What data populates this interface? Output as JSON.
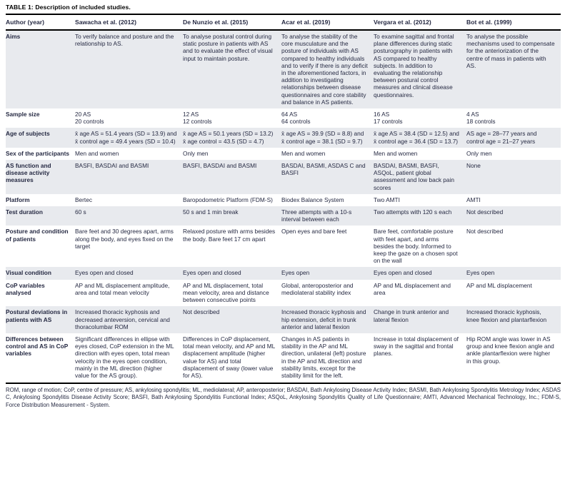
{
  "title": "TABLE 1: Description of included studies.",
  "colors": {
    "row_shade": "#e8eaee",
    "text": "#262a43",
    "rule": "#000000"
  },
  "table": {
    "columns": [
      "Author (year)",
      "Sawacha et al. (2012)",
      "De Nunzio et al. (2015)",
      "Acar et al. (2019)",
      "Vergara et al. (2012)",
      "Bot et al. (1999)"
    ],
    "rows": [
      {
        "label": "Aims",
        "cells": [
          "To verify balance and posture and the relationship to AS.",
          "To analyse postural control during static posture in patients with AS and to evaluate the effect of visual input to maintain posture.",
          "To analyse the stability of the core musculature and the posture of individuals with AS compared to healthy individuals and to verify if there is any deficit in the aforementioned factors, in addition to investigating relationships between disease questionnaires and core stability and balance in AS patients.",
          "To examine sagittal and frontal plane differences during static posturography in patients with AS compared to healthy subjects. In addition to evaluating the relationship between postural control measures and clinical disease questionnaires.",
          "To analyse the possible mechanisms used to compensate for the anteriorization of the centre of mass in patients with AS."
        ]
      },
      {
        "label": "Sample size",
        "cells": [
          "20 AS\n20 controls",
          "12 AS\n12 controls",
          "64 AS\n64 controls",
          "16 AS\n17 controls",
          "4 AS\n18 controls"
        ]
      },
      {
        "label": "Age of subjects",
        "cells": [
          "x̄ age AS = 51.4 years (SD = 13.9) and x̄ control age = 49.4 years (SD = 10.4)",
          "x̄ age AS = 50.1 years (SD = 13.2) x̄ age control = 43.5 (SD = 4.7)",
          "x̄ age AS = 39.9 (SD = 8.8) and x̄ control age = 38.1 (SD = 9.7)",
          "x̄ age AS = 38.4 (SD = 12.5) and x̄ control age = 36.4 (SD = 13.7)",
          "AS age = 28–77 years and control age = 21–27 years"
        ]
      },
      {
        "label": "Sex of the participants",
        "cells": [
          "Men and women",
          "Only men",
          "Men and women",
          "Men and women",
          "Only men"
        ]
      },
      {
        "label": "AS function and disease activity measures",
        "cells": [
          "BASFI, BASDAI and BASMI",
          "BASFI, BASDAI and BASMI",
          "BASDAI, BASMI, ASDAS C and BASFI",
          "BASDAI, BASMI, BASFI, ASQoL, patient global assessment and low back pain scores",
          "None"
        ]
      },
      {
        "label": "Platform",
        "cells": [
          "Bertec",
          "Baropodometric Platform (FDM-S)",
          "Biodex Balance System",
          "Two AMTI",
          "AMTI"
        ]
      },
      {
        "label": "Test duration",
        "cells": [
          "60 s",
          "50 s and 1 min break",
          "Three attempts with a 10-s interval between each",
          "Two attempts with 120 s each",
          "Not described"
        ]
      },
      {
        "label": "Posture and condition of patients",
        "cells": [
          "Bare feet and 30 degrees apart, arms along the body, and eyes fixed on the target",
          "Relaxed posture with arms besides the body. Bare feet 17 cm apart",
          "Open eyes and bare feet",
          "Bare feet, comfortable posture with feet apart, and arms besides the body. Informed to keep the gaze on a chosen spot on the wall",
          "Not described"
        ]
      },
      {
        "label": "Visual condition",
        "cells": [
          "Eyes open and closed",
          "Eyes open and closed",
          "Eyes open",
          "Eyes open and closed",
          "Eyes open"
        ]
      },
      {
        "label": "CoP variables analysed",
        "cells": [
          "AP and ML displacement amplitude, area and total mean velocity",
          "AP and ML displacement, total mean velocity, area and distance between consecutive points",
          "Global, anteroposterior and mediolateral stability index",
          "AP and ML displacement and area",
          "AP and ML displacement"
        ]
      },
      {
        "label": "Postural deviations in patients with AS",
        "cells": [
          "Increased thoracic kyphosis and decreased anteversion, cervical and thoracolumbar ROM",
          "Not described",
          "Increased thoracic kyphosis and hip extension, deficit in trunk anterior and lateral flexion",
          "Change in trunk anterior and lateral flexion",
          "Increased thoracic kyphosis, knee flexion and plantarflexion"
        ]
      },
      {
        "label": "Differences between control and AS in CoP variables",
        "cells": [
          "Significant differences in ellipse with eyes closed, CoP extension in the ML direction with eyes open, total mean velocity in the eyes open condition, mainly in the ML direction (higher value for the AS group).",
          "Differences in CoP displacement, total mean velocity, and AP and ML displacement amplitude (higher value for AS) and total displacement of sway (lower value for AS).",
          "Changes in AS patients in stability in the AP and ML direction, unilateral (left) posture in the AP and ML direction and stability limits, except for the stability limit for the left.",
          "Increase in total displacement of sway in the sagittal and frontal planes.",
          "Hip ROM angle was lower in AS group and knee flexion angle and ankle plantarflexion were higher in this group."
        ]
      }
    ]
  },
  "footnote": "ROM, range of motion; CoP, centre of pressure; AS, ankylosing spondylitis; ML, mediolateral; AP, anteroposterior; BASDAI, Bath Ankylosing Disease Activity Index; BASMI, Bath Ankylosing Spondylitis Metrology Index; ASDAS C, Ankylosing Spondylitis Disease Activity Score; BASFI, Bath Ankylosing Spondylitis Functional Index; ASQoL, Ankylosing Spondylitis Quality of Life Questionnaire; AMTI, Advanced Mechanical Technology, Inc.; FDM-S, Force Distribution Measurement - System."
}
